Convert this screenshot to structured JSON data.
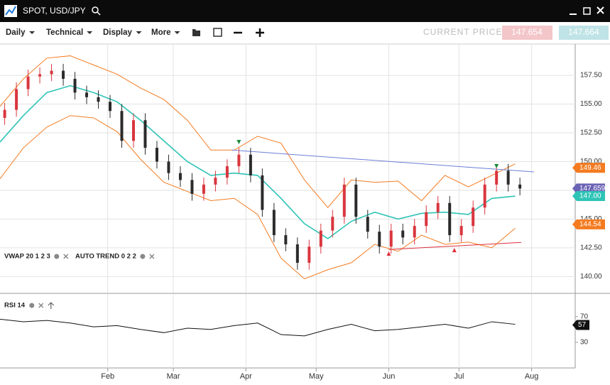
{
  "header": {
    "title": "SPOT, USD/JPY",
    "menus": [
      "Daily",
      "Technical",
      "Display",
      "More"
    ],
    "current_price_label": "CURRENT PRICE:",
    "bid": "147.654",
    "ask": "147.664"
  },
  "chart_data": [
    {
      "type": "candlestick",
      "indicators": [
        "VWAP 20 1 2 3",
        "AUTO TREND 0 2 2"
      ],
      "xlim": [
        -14,
        231
      ],
      "ylim": [
        138.6,
        160.1
      ],
      "yticks": [
        {
          "value": 140,
          "label": "140.00"
        },
        {
          "value": 142.5,
          "label": "142.50"
        },
        {
          "value": 145,
          "label": "145.00"
        },
        {
          "value": 147.5,
          "label": "147.50"
        },
        {
          "value": 150,
          "label": "150.00"
        },
        {
          "value": 152.5,
          "label": "152.50"
        },
        {
          "value": 155,
          "label": "155.00"
        },
        {
          "value": 157.5,
          "label": "157.50"
        }
      ],
      "grid": true,
      "up_color": "#d9363e",
      "down_color": "#2b2b2b",
      "x": [
        -12,
        -7,
        -2,
        3,
        8,
        13,
        18,
        23,
        28,
        33,
        38,
        43,
        48,
        53,
        58,
        63,
        68,
        73,
        78,
        83,
        88,
        93,
        98,
        103,
        108,
        113,
        118,
        123,
        128,
        133,
        138,
        143,
        148,
        153,
        158,
        163,
        168,
        173,
        178,
        183,
        188,
        193,
        198,
        203,
        208
      ],
      "open": [
        153.8,
        154.5,
        156.3,
        157.4,
        157.6,
        157.9,
        157.2,
        156.0,
        155.6,
        155.2,
        154.4,
        151.8,
        153.6,
        151.2,
        150.0,
        149.0,
        148.4,
        147.2,
        148.0,
        148.6,
        149.6,
        150.6,
        148.8,
        145.8,
        143.6,
        142.8,
        141.2,
        142.6,
        144.0,
        145.2,
        148.0,
        145.2,
        143.9,
        142.6,
        144.0,
        143.4,
        144.4,
        145.6,
        146.4,
        143.6,
        144.4,
        146.0,
        148.0,
        149.2,
        148.0
      ],
      "high": [
        155.1,
        156.9,
        158.0,
        158.2,
        158.5,
        158.5,
        157.8,
        156.6,
        156.2,
        155.8,
        155.0,
        154.2,
        154.2,
        151.8,
        150.6,
        149.6,
        149.0,
        148.6,
        149.2,
        150.2,
        151.2,
        151.2,
        149.4,
        146.4,
        144.2,
        143.4,
        143.2,
        144.6,
        145.8,
        148.6,
        148.6,
        145.8,
        144.5,
        144.6,
        144.6,
        145.0,
        146.2,
        147.0,
        147.0,
        145.0,
        146.6,
        148.6,
        149.8,
        149.8,
        148.6
      ],
      "low": [
        153.2,
        153.9,
        155.7,
        156.8,
        157.0,
        156.6,
        155.4,
        155.0,
        154.6,
        153.8,
        151.2,
        151.2,
        150.6,
        149.4,
        148.4,
        147.8,
        146.6,
        146.6,
        147.4,
        148.0,
        149.0,
        148.2,
        145.2,
        143.0,
        142.2,
        140.6,
        140.6,
        142.0,
        143.4,
        144.6,
        144.6,
        143.3,
        142.0,
        142.0,
        142.8,
        142.8,
        143.8,
        145.0,
        143.0,
        143.0,
        143.8,
        145.4,
        147.4,
        147.4,
        147.06
      ],
      "close": [
        154.5,
        156.3,
        157.4,
        157.6,
        157.9,
        157.2,
        156.0,
        155.6,
        155.2,
        154.4,
        151.8,
        153.6,
        151.2,
        150.0,
        149.0,
        148.4,
        147.2,
        148.0,
        148.6,
        149.6,
        150.6,
        148.8,
        145.8,
        143.6,
        142.8,
        141.2,
        142.6,
        144.0,
        145.2,
        148.0,
        145.2,
        143.9,
        142.6,
        144.0,
        143.4,
        144.4,
        145.6,
        146.4,
        143.6,
        144.4,
        146.0,
        148.0,
        149.2,
        148.0,
        147.66
      ],
      "overlay_x": [
        -14,
        -4,
        6,
        16,
        26,
        36,
        46,
        56,
        66,
        76,
        86,
        96,
        106,
        116,
        126,
        136,
        146,
        156,
        166,
        176,
        186,
        196,
        206
      ],
      "overlays": [
        {
          "color": "#f47b20",
          "values": [
            154.8,
            157.2,
            159.0,
            159.2,
            158.4,
            157.6,
            156.4,
            155.4,
            153.6,
            151.0,
            151.0,
            152.2,
            151.6,
            148.4,
            146.0,
            148.4,
            148.2,
            148.3,
            146.6,
            148.8,
            147.8,
            148.8,
            149.8
          ]
        },
        {
          "color": "#2ec4b6",
          "values": [
            151.7,
            154.0,
            156.0,
            156.6,
            156.0,
            155.2,
            153.6,
            151.8,
            150.0,
            148.8,
            149.0,
            148.8,
            146.8,
            144.6,
            143.3,
            144.8,
            145.6,
            145.0,
            145.5,
            145.6,
            145.4,
            146.8,
            147.0
          ]
        },
        {
          "color": "#f47b20",
          "values": [
            148.5,
            151.2,
            153.0,
            154.0,
            153.8,
            152.6,
            150.2,
            148.2,
            147.4,
            146.6,
            146.8,
            145.4,
            141.6,
            139.8,
            140.6,
            141.2,
            142.8,
            142.2,
            143.6,
            142.8,
            143.0,
            142.5,
            144.2
          ]
        }
      ],
      "trendlines": [
        {
          "x": [
            85,
            214
          ],
          "values": [
            151.0,
            149.1
          ],
          "color": "#6b7fd7"
        },
        {
          "x": [
            152,
            208.6
          ],
          "values": [
            142.35,
            142.97
          ],
          "color": "#e0303a"
        }
      ],
      "markers": [
        {
          "x": 88,
          "value": 151.7,
          "direction": "down",
          "color": "#1a8a3a"
        },
        {
          "x": 198,
          "value": 149.6,
          "direction": "down",
          "color": "#1a8a3a"
        },
        {
          "x": 152,
          "value": 142.0,
          "direction": "up",
          "color": "#e0303a"
        },
        {
          "x": 180,
          "value": 142.3,
          "direction": "up",
          "color": "#e0303a"
        }
      ],
      "price_labels": [
        {
          "value": 149.46,
          "label": "149.46",
          "color": "#f47b20"
        },
        {
          "value": 147.659,
          "label": "147.6590",
          "color": "#6b63b5"
        },
        {
          "value": 147.0,
          "label": "147.00",
          "color": "#2ec4b6"
        },
        {
          "value": 144.54,
          "label": "144.54",
          "color": "#f47b20"
        }
      ]
    },
    {
      "type": "line",
      "indicator": "RSI 14",
      "color": "#111",
      "xlim": [
        -14,
        231
      ],
      "ylim": [
        -10,
        104
      ],
      "yticks": [
        30,
        70
      ],
      "xticks": [
        {
          "value": 32,
          "label": "Feb"
        },
        {
          "value": 60,
          "label": "Mar"
        },
        {
          "value": 91,
          "label": "Apr"
        },
        {
          "value": 121,
          "label": "May"
        },
        {
          "value": 152,
          "label": "Jun"
        },
        {
          "value": 182,
          "label": "Jul"
        },
        {
          "value": 213,
          "label": "Aug"
        }
      ],
      "x": [
        -14,
        -4,
        6,
        16,
        26,
        36,
        46,
        56,
        66,
        76,
        86,
        96,
        106,
        116,
        126,
        136,
        146,
        156,
        166,
        176,
        186,
        196,
        206
      ],
      "values": [
        66,
        62,
        64,
        60,
        54,
        56,
        50,
        45,
        52,
        50,
        56,
        60,
        42,
        40,
        50,
        58,
        48,
        50,
        54,
        58,
        52,
        62,
        58
      ],
      "current": 57
    }
  ]
}
